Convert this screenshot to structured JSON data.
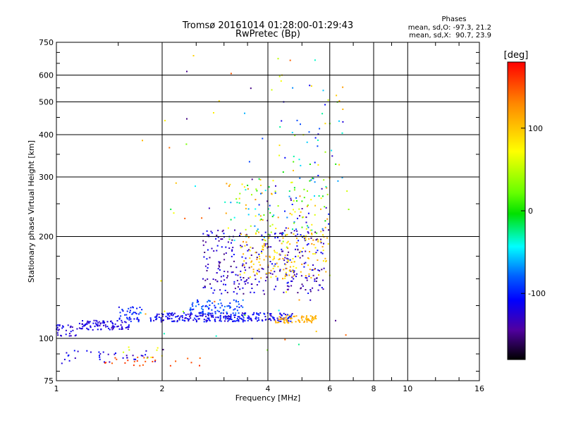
{
  "chart_data": {
    "type": "scatter",
    "title": "Tromsø 20161014 01:28:00-01:29:43",
    "subtitle": "RwPretec (Bp)",
    "xlabel": "Frequency [MHz]",
    "ylabel": "Stationary phase Virtual Height [km]",
    "x_scale": "log",
    "y_scale": "log",
    "xlim": [
      1,
      16
    ],
    "ylim": [
      75,
      750
    ],
    "grid": true,
    "x_ticks": [
      "1",
      "2",
      "4",
      "6",
      "8",
      "10",
      "16"
    ],
    "y_ticks": [
      "75",
      "100",
      "200",
      "300",
      "400",
      "500",
      "600",
      "750"
    ],
    "phase_info": {
      "title": "Phases",
      "line_o": "mean, sd,O: -97.3, 21.2",
      "line_x": "mean, sd,X:  90.7, 23.9"
    },
    "colorbar": {
      "label": "[deg]",
      "ticks": [
        "100",
        "0",
        "-100"
      ],
      "tick_values": [
        100,
        0,
        -100
      ],
      "range": [
        -180,
        180
      ],
      "colormap": "rainbow"
    },
    "clusters": [
      {
        "x": [
          1.0,
          1.14
        ],
        "y": [
          101,
          110
        ],
        "phase": [
          -95,
          -130
        ],
        "n": 30
      },
      {
        "x": [
          1.14,
          1.62
        ],
        "y": [
          106,
          113
        ],
        "phase": [
          -100,
          -125
        ],
        "n": 95
      },
      {
        "x": [
          1.5,
          1.75
        ],
        "y": [
          112,
          124
        ],
        "phase": [
          -80,
          -110
        ],
        "n": 40
      },
      {
        "x": [
          1.85,
          4.7
        ],
        "y": [
          112,
          119
        ],
        "phase": [
          -85,
          -125
        ],
        "n": 260
      },
      {
        "x": [
          2.4,
          3.4
        ],
        "y": [
          118,
          130
        ],
        "phase": [
          -60,
          -100
        ],
        "n": 80
      },
      {
        "x": [
          4.2,
          5.5
        ],
        "y": [
          111,
          117
        ],
        "phase": [
          100,
          120
        ],
        "n": 70
      },
      {
        "x": [
          2.6,
          5.8
        ],
        "y": [
          135,
          210
        ],
        "phase": [
          -95,
          -150
        ],
        "n": 300
      },
      {
        "x": [
          3.3,
          5.9
        ],
        "y": [
          150,
          205
        ],
        "phase": [
          70,
          130
        ],
        "n": 140
      },
      {
        "x": [
          3.0,
          6.0
        ],
        "y": [
          190,
          300
        ],
        "phase": [
          -140,
          130
        ],
        "n": 160
      },
      {
        "x": [
          4.3,
          6.6
        ],
        "y": [
          280,
          600
        ],
        "phase": [
          -120,
          120
        ],
        "n": 55
      },
      {
        "x": [
          1.0,
          1.95
        ],
        "y": [
          84,
          92
        ],
        "phase": [
          -95,
          -130
        ],
        "n": 35
      },
      {
        "x": [
          1.2,
          2.6
        ],
        "y": [
          83,
          88
        ],
        "phase": [
          140,
          165
        ],
        "n": 25
      },
      {
        "x": [
          1.5,
          2.0
        ],
        "y": [
          86,
          95
        ],
        "phase": [
          50,
          90
        ],
        "n": 8
      },
      {
        "x": [
          1.7,
          6.8
        ],
        "y": [
          90,
          700
        ],
        "phase": [
          -150,
          150
        ],
        "n": 60
      }
    ]
  }
}
